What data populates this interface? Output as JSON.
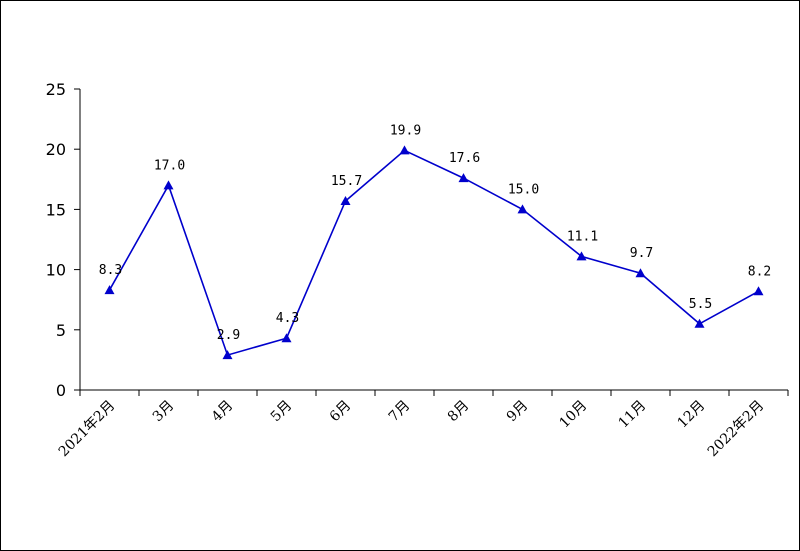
{
  "chart_data": {
    "type": "line",
    "categories": [
      "2021年2月",
      "3月",
      "4月",
      "5月",
      "6月",
      "7月",
      "8月",
      "9月",
      "10月",
      "11月",
      "12月",
      "2022年2月"
    ],
    "series": [
      {
        "values": [
          8.3,
          17.0,
          2.9,
          4.3,
          15.7,
          19.9,
          17.6,
          15.0,
          11.1,
          9.7,
          5.5,
          8.2
        ]
      }
    ],
    "data_labels": [
      "8.3",
      "17.0",
      "2.9",
      "4.3",
      "15.7",
      "19.9",
      "17.6",
      "15.0",
      "11.1",
      "9.7",
      "5.5",
      "8.2"
    ],
    "y_ticks": [
      "0",
      "5",
      "10",
      "15",
      "20",
      "25"
    ],
    "ylim": [
      0,
      25
    ],
    "marker": "triangle",
    "line_color": "#0000CC",
    "grid": false
  }
}
